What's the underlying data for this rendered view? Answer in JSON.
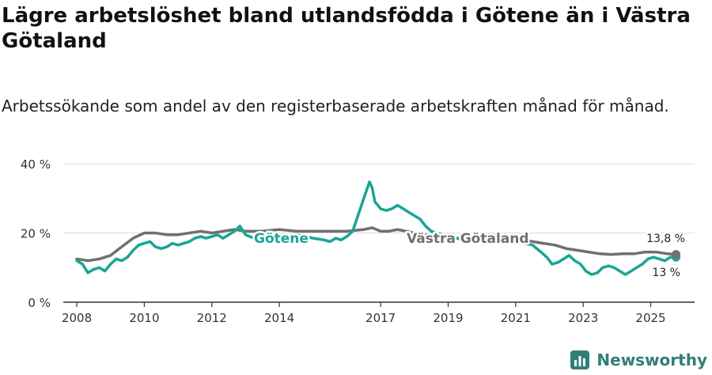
{
  "title": "Lägre arbetslöshet bland utlandsfödda i Götene än i Västra Götaland",
  "subtitle": "Arbetssökande som andel av den registerbaserade arbetskraften månad för månad.",
  "brand": {
    "name": "Newsworthy",
    "icon": "newsworthy-logo-icon"
  },
  "colors": {
    "gotene": "#19a596",
    "vastra_gotaland": "#707070",
    "grid": "#dddddd",
    "axis": "#333333"
  },
  "chart_data": {
    "type": "line",
    "title": "Lägre arbetslöshet bland utlandsfödda i Götene än i Västra Götaland",
    "subtitle": "Arbetssökande som andel av den registerbaserade arbetskraften månad för månad.",
    "xlabel": "",
    "ylabel": "",
    "xlim": [
      2008,
      2025.8
    ],
    "ylim": [
      0,
      40
    ],
    "yticks": [
      0,
      20,
      40
    ],
    "ytick_labels": [
      "0 %",
      "20 %",
      "40 %"
    ],
    "xticks": [
      2008,
      2010,
      2012,
      2014,
      2017,
      2019,
      2021,
      2023,
      2025
    ],
    "xtick_labels": [
      "2008",
      "2010",
      "2012",
      "2014",
      "2017",
      "2019",
      "2021",
      "2023",
      "2025"
    ],
    "grid": true,
    "legend": "inline labels",
    "series": [
      {
        "name": "Götene",
        "color": "#19a596",
        "end_label": "13 %",
        "x": [
          2008.0,
          2008.17,
          2008.33,
          2008.5,
          2008.67,
          2008.83,
          2009.0,
          2009.17,
          2009.33,
          2009.5,
          2009.67,
          2009.83,
          2010.0,
          2010.17,
          2010.33,
          2010.5,
          2010.67,
          2010.83,
          2011.0,
          2011.17,
          2011.33,
          2011.5,
          2011.67,
          2011.83,
          2012.0,
          2012.17,
          2012.33,
          2012.5,
          2012.67,
          2012.83,
          2013.0,
          2013.5,
          2014.0,
          2014.5,
          2015.0,
          2015.33,
          2015.5,
          2015.67,
          2015.83,
          2016.0,
          2016.17,
          2016.33,
          2016.5,
          2016.67,
          2016.75,
          2016.83,
          2016.92,
          2017.0,
          2017.17,
          2017.33,
          2017.5,
          2017.67,
          2017.83,
          2018.0,
          2018.17,
          2018.33,
          2018.5,
          2019.0,
          2019.5,
          2020.0,
          2020.5,
          2021.0,
          2021.5,
          2021.75,
          2021.92,
          2022.08,
          2022.25,
          2022.42,
          2022.58,
          2022.75,
          2022.92,
          2023.08,
          2023.25,
          2023.42,
          2023.58,
          2023.75,
          2023.92,
          2024.08,
          2024.25,
          2024.42,
          2024.58,
          2024.75,
          2024.92,
          2025.08,
          2025.25,
          2025.42,
          2025.58,
          2025.75
        ],
        "values": [
          12,
          11,
          8.5,
          9.5,
          10,
          9,
          11,
          12.5,
          12,
          13,
          15,
          16.5,
          17,
          17.5,
          16,
          15.5,
          16,
          17,
          16.5,
          17,
          17.5,
          18.5,
          19,
          18.5,
          19,
          19.5,
          18.5,
          19.5,
          20.5,
          22,
          19.5,
          17.5,
          18,
          19.5,
          18.5,
          18,
          17.5,
          18.5,
          18,
          19,
          20.5,
          25,
          30,
          34.8,
          33,
          29,
          28,
          27,
          26.5,
          27,
          28,
          27,
          26,
          25,
          24,
          22,
          20.5,
          19,
          18,
          17.5,
          18.5,
          17.5,
          16.5,
          14.5,
          13,
          11,
          11.5,
          12.5,
          13.5,
          12,
          11,
          9,
          8,
          8.5,
          10,
          10.5,
          10,
          9,
          8,
          9,
          10,
          11,
          12.5,
          13,
          12.5,
          12,
          13,
          13
        ]
      },
      {
        "name": "Västra Götaland",
        "color": "#707070",
        "end_label": "13,8 %",
        "x": [
          2008.0,
          2008.33,
          2008.67,
          2009.0,
          2009.33,
          2009.67,
          2010.0,
          2010.33,
          2010.67,
          2011.0,
          2011.33,
          2011.67,
          2012.0,
          2012.33,
          2012.67,
          2013.0,
          2013.5,
          2014.0,
          2014.5,
          2015.0,
          2015.5,
          2016.0,
          2016.5,
          2016.75,
          2017.0,
          2017.25,
          2017.5,
          2017.75,
          2018.0,
          2018.33,
          2018.67,
          2019.0,
          2019.5,
          2020.0,
          2020.5,
          2021.0,
          2021.5,
          2021.83,
          2022.17,
          2022.5,
          2022.83,
          2023.17,
          2023.5,
          2023.83,
          2024.17,
          2024.5,
          2024.83,
          2025.17,
          2025.5,
          2025.75
        ],
        "values": [
          12.5,
          12,
          12.5,
          13.5,
          16,
          18.5,
          20,
          20,
          19.5,
          19.5,
          20,
          20.5,
          20,
          20.5,
          21,
          20.5,
          20.5,
          21,
          20.5,
          20.5,
          20.5,
          20.5,
          21,
          21.5,
          20.5,
          20.5,
          21,
          20.5,
          20,
          19.5,
          19,
          18.5,
          18.5,
          19,
          19.5,
          18.5,
          17.5,
          17,
          16.5,
          15.5,
          15,
          14.5,
          14,
          13.8,
          14,
          14,
          14.5,
          14.5,
          14,
          13.8
        ]
      }
    ]
  }
}
